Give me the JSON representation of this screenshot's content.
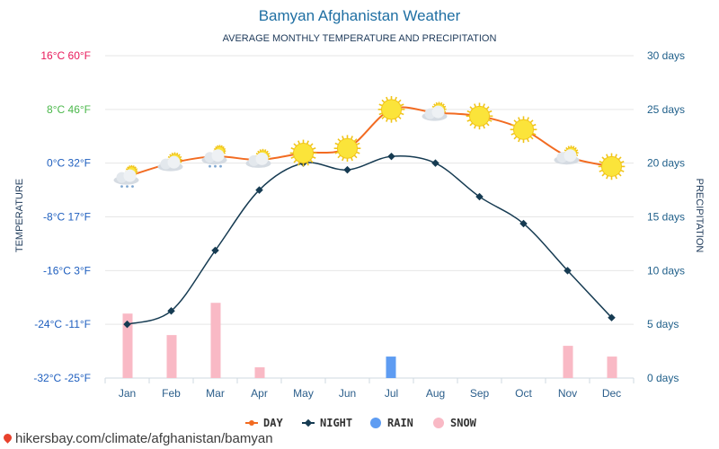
{
  "chart_data": {
    "type": "line",
    "title": "Bamyan Afghanistan Weather",
    "subtitle": "AVERAGE MONTHLY TEMPERATURE AND PRECIPITATION",
    "categories": [
      "Jan",
      "Feb",
      "Mar",
      "Apr",
      "May",
      "Jun",
      "Jul",
      "Aug",
      "Sep",
      "Oct",
      "Nov",
      "Dec"
    ],
    "series": [
      {
        "name": "DAY",
        "type": "line",
        "axis": "left",
        "unit": "°C",
        "color": "#f26b21",
        "values": [
          -2,
          0,
          1,
          0.5,
          1.5,
          2.2,
          8,
          7.5,
          7,
          5,
          1,
          -0.5
        ]
      },
      {
        "name": "NIGHT",
        "type": "line",
        "axis": "left",
        "unit": "°C",
        "color": "#163b52",
        "values": [
          -24,
          -22,
          -13,
          -4,
          0,
          -1,
          1,
          0,
          -5,
          -9,
          -16,
          -23
        ]
      },
      {
        "name": "RAIN",
        "type": "bar",
        "axis": "right",
        "unit": "days",
        "color": "#5e9cf2",
        "values": [
          0,
          0,
          0,
          0,
          0,
          0,
          2,
          0,
          0,
          0,
          0,
          0
        ]
      },
      {
        "name": "SNOW",
        "type": "bar",
        "axis": "right",
        "unit": "days",
        "color": "#f9b9c5",
        "values": [
          6,
          4,
          7,
          1,
          0,
          0,
          0,
          0,
          0,
          0,
          3,
          2
        ]
      }
    ],
    "weather_icons": [
      "snow-cloud-icon",
      "partly-cloudy-icon",
      "snow-cloud-icon",
      "partly-cloudy-icon",
      "sun-icon",
      "sun-icon",
      "sun-icon",
      "partly-cloudy-icon",
      "sun-icon",
      "sun-icon",
      "partly-cloudy-icon",
      "sun-icon"
    ],
    "y_left": {
      "label": "TEMPERATURE",
      "range": [
        -32,
        16
      ],
      "ticks": [
        {
          "value": 16,
          "label": "16°C 60°F",
          "color": "#e8195a"
        },
        {
          "value": 8,
          "label": "8°C 46°F",
          "color": "#4bb84b"
        },
        {
          "value": 0,
          "label": "0°C 32°F",
          "color": "#1f5fbf"
        },
        {
          "value": -8,
          "label": "-8°C 17°F",
          "color": "#1f5fbf"
        },
        {
          "value": -16,
          "label": "-16°C 3°F",
          "color": "#1f5fbf"
        },
        {
          "value": -24,
          "label": "-24°C -11°F",
          "color": "#1f5fbf"
        },
        {
          "value": -32,
          "label": "-32°C -25°F",
          "color": "#1f5fbf"
        }
      ]
    },
    "y_right": {
      "label": "PRECIPITATION",
      "range": [
        0,
        30
      ],
      "ticks": [
        {
          "value": 30,
          "label": "30 days"
        },
        {
          "value": 25,
          "label": "25 days"
        },
        {
          "value": 20,
          "label": "20 days"
        },
        {
          "value": 15,
          "label": "15 days"
        },
        {
          "value": 10,
          "label": "10 days"
        },
        {
          "value": 5,
          "label": "5 days"
        },
        {
          "value": 0,
          "label": "0 days"
        }
      ],
      "color": "#1f5f8a"
    },
    "grid": true,
    "legend_position": "bottom-center"
  },
  "footer": {
    "text": "hikersbay.com/climate/afghanistan/bamyan",
    "icon": "map-pin-icon"
  }
}
